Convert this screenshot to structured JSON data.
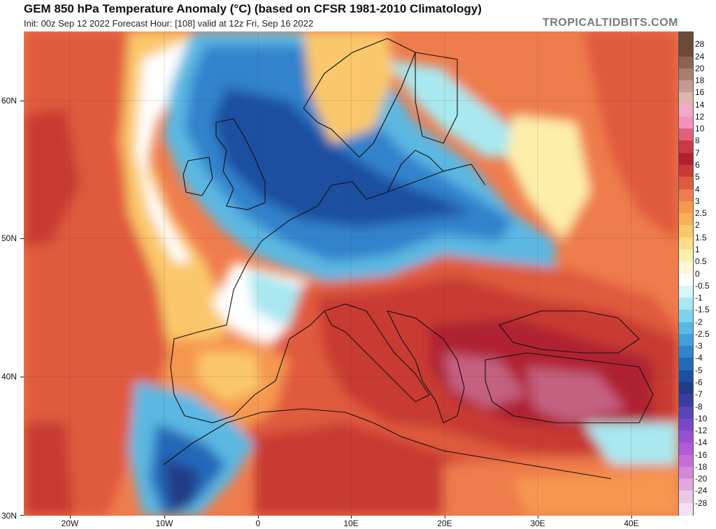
{
  "header": {
    "title": "GEM 850 hPa Temperature Anomaly (°C) (based on CFSR 1981-2010 Climatology)",
    "subtitle": "Init: 00z Sep 12 2022   Forecast Hour: [108]   valid at 12z Fri, Sep 16 2022",
    "brand": "TROPICALTIDBITS.COM"
  },
  "axes": {
    "lat_labels": [
      "60N",
      "50N",
      "40N",
      "30N"
    ],
    "lon_labels": [
      "20W",
      "10W",
      "0",
      "10E",
      "20E",
      "30E",
      "40E"
    ]
  },
  "colorbar": {
    "labels": [
      "28",
      "24",
      "20",
      "18",
      "16",
      "14",
      "12",
      "10",
      "8",
      "7",
      "6",
      "5",
      "4",
      "3",
      "2.5",
      "2",
      "1.5",
      "1",
      "0.5",
      "0",
      "-0.5",
      "-1",
      "-1.5",
      "-2",
      "-2.5",
      "-3",
      "-4",
      "-5",
      "-6",
      "-7",
      "-8",
      "-10",
      "-12",
      "-14",
      "-16",
      "-18",
      "-20",
      "-24",
      "-28"
    ],
    "colors": [
      "#6b4a3a",
      "#8a6352",
      "#a87e72",
      "#c49a92",
      "#dcb4b0",
      "#f2a8c8",
      "#f590b8",
      "#e0607e",
      "#c83845",
      "#b02030",
      "#c83a33",
      "#e05a3e",
      "#ef7c4c",
      "#f5984f",
      "#f8b058",
      "#fac86a",
      "#fcde86",
      "#fdeeaa",
      "#fef8d8",
      "#ffffff",
      "#d8f4f6",
      "#a8e8f0",
      "#80d2ea",
      "#5cb8e2",
      "#449ed8",
      "#3282cc",
      "#2468b8",
      "#1a50a0",
      "#203a86",
      "#3a3c9e",
      "#5846b8",
      "#7648c8",
      "#9650d0",
      "#b05ad6",
      "#c66ed6",
      "#d488d6",
      "#e0a8de",
      "#eac8e8",
      "#f4e0f2"
    ]
  },
  "map": {
    "colors": {
      "warm_dark": "#b02030",
      "warm": "#e05a3e",
      "warm_light": "#f5984f",
      "neutral": "#fdeeaa",
      "cool_light": "#a8e8f0",
      "cool": "#449ed8",
      "cool_dark": "#1a50a0",
      "hot_pink": "#c46080"
    }
  }
}
